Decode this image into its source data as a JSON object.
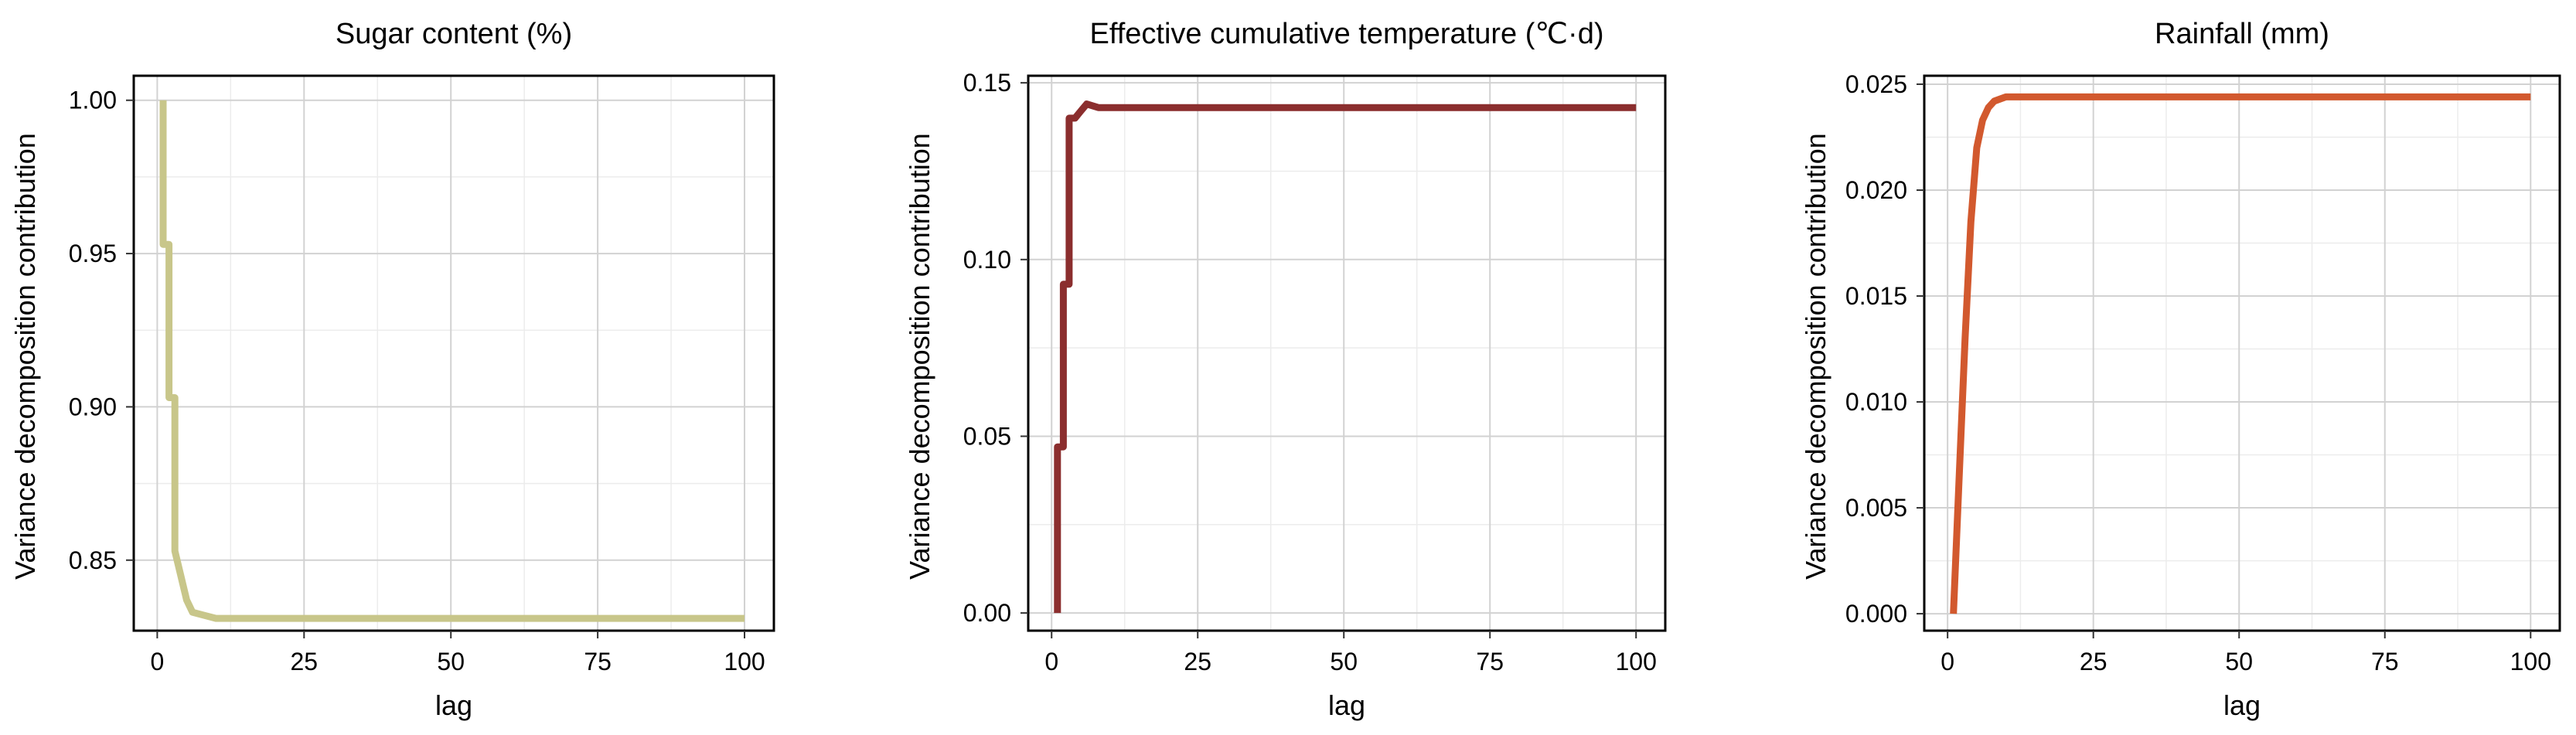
{
  "chart_data": [
    {
      "type": "line",
      "title": "Sugar content (%)",
      "xlabel": "lag",
      "ylabel": "Variance decomposition contribution",
      "xlim": [
        -4,
        105
      ],
      "ylim": [
        0.827,
        1.008
      ],
      "xticks": [
        0,
        25,
        50,
        75,
        100
      ],
      "yticks": [
        0.85,
        0.9,
        0.95,
        1.0
      ],
      "ytick_labels": [
        "0.85",
        "0.90",
        "0.95",
        "1.00"
      ],
      "grid": true,
      "series": [
        {
          "color": "#c8c68a",
          "x": [
            1,
            1,
            2,
            2,
            3,
            3,
            4,
            5,
            6,
            8,
            10,
            100
          ],
          "y": [
            1.0,
            0.953,
            0.953,
            0.903,
            0.903,
            0.853,
            0.845,
            0.837,
            0.833,
            0.832,
            0.831,
            0.831
          ]
        }
      ]
    },
    {
      "type": "line",
      "title": "Effective cumulative temperature (℃·d)",
      "xlabel": "lag",
      "ylabel": "Variance decomposition contribution",
      "xlim": [
        -4,
        105
      ],
      "ylim": [
        -0.005,
        0.152
      ],
      "xticks": [
        0,
        25,
        50,
        75,
        100
      ],
      "yticks": [
        0.0,
        0.05,
        0.1,
        0.15
      ],
      "ytick_labels": [
        "0.00",
        "0.05",
        "0.10",
        "0.15"
      ],
      "grid": true,
      "series": [
        {
          "color": "#8b2e2e",
          "x": [
            1,
            1,
            2,
            2,
            3,
            3,
            4,
            5,
            6,
            8,
            100
          ],
          "y": [
            0.0,
            0.047,
            0.047,
            0.093,
            0.093,
            0.14,
            0.14,
            0.142,
            0.144,
            0.143,
            0.143
          ]
        }
      ]
    },
    {
      "type": "line",
      "title": "Rainfall (mm)",
      "xlabel": "lag",
      "ylabel": "Variance decomposition contribution",
      "xlim": [
        -4,
        105
      ],
      "ylim": [
        -0.0008,
        0.0254
      ],
      "xticks": [
        0,
        25,
        50,
        75,
        100
      ],
      "yticks": [
        0.0,
        0.005,
        0.01,
        0.015,
        0.02,
        0.025
      ],
      "ytick_labels": [
        "0.000",
        "0.005",
        "0.010",
        "0.015",
        "0.020",
        "0.025"
      ],
      "grid": true,
      "series": [
        {
          "color": "#d2592e",
          "x": [
            1,
            2,
            3,
            4,
            5,
            6,
            7,
            8,
            9,
            10,
            12,
            100
          ],
          "y": [
            0.0,
            0.0065,
            0.013,
            0.0185,
            0.022,
            0.0233,
            0.0239,
            0.0242,
            0.0243,
            0.0244,
            0.0244,
            0.0244
          ]
        }
      ]
    }
  ]
}
